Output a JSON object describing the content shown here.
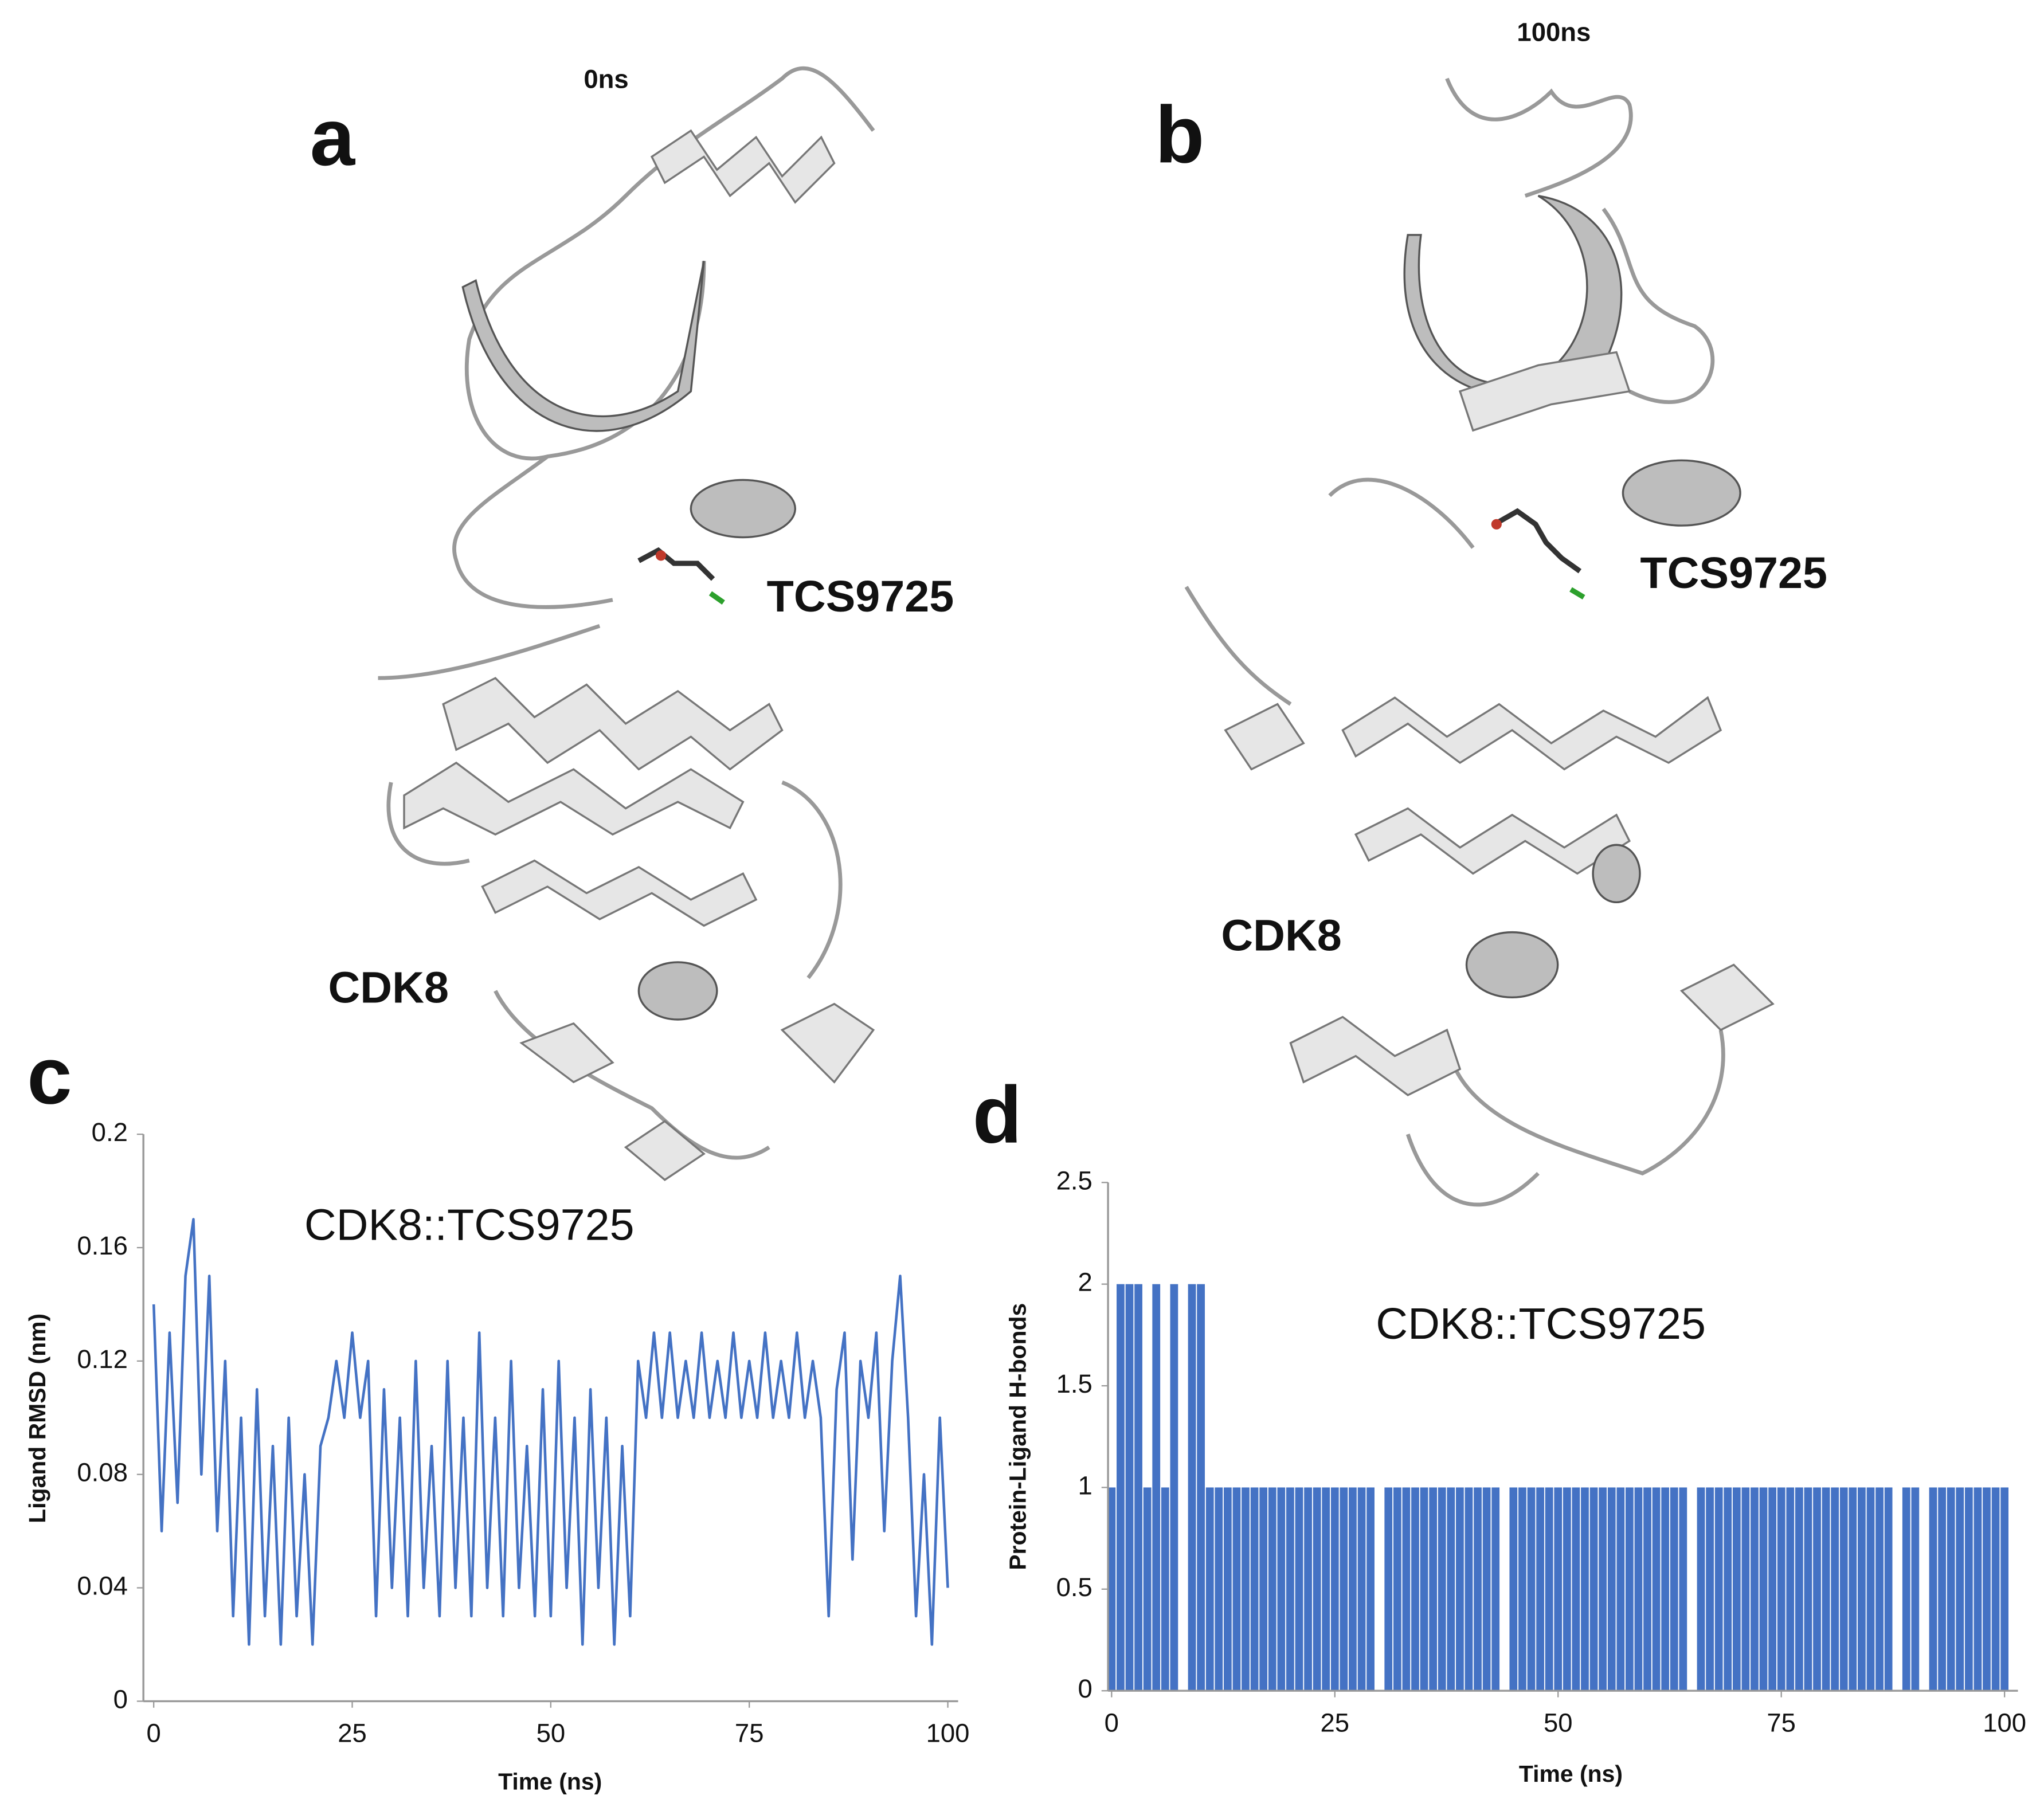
{
  "panels": [
    {
      "label": "a",
      "time": "0ns",
      "ligand": "TCS9725",
      "protein": "CDK8"
    },
    {
      "label": "b",
      "time": "100ns",
      "ligand": "TCS9725",
      "protein": "CDK8"
    }
  ],
  "chart_data": [
    {
      "type": "line",
      "panel_label": "c",
      "title": "CDK8::TCS9725",
      "x_label": "Time (ns)",
      "y_label": "Ligand RMSD (nm)",
      "color": "#4472c4",
      "xlim": [
        -1.3,
        101.3
      ],
      "xticks": [
        0,
        25,
        50,
        75,
        100
      ],
      "ylim": [
        0,
        0.2
      ],
      "yticks": [
        0,
        0.04,
        0.08,
        0.12,
        0.16,
        0.2
      ],
      "x": [
        0,
        1,
        2,
        3,
        4,
        5,
        6,
        7,
        8,
        9,
        10,
        11,
        12,
        13,
        14,
        15,
        16,
        17,
        18,
        19,
        20,
        21,
        22,
        23,
        24,
        25,
        26,
        27,
        28,
        29,
        30,
        31,
        32,
        33,
        34,
        35,
        36,
        37,
        38,
        39,
        40,
        41,
        42,
        43,
        44,
        45,
        46,
        47,
        48,
        49,
        50,
        51,
        52,
        53,
        54,
        55,
        56,
        57,
        58,
        59,
        60,
        61,
        62,
        63,
        64,
        65,
        66,
        67,
        68,
        69,
        70,
        71,
        72,
        73,
        74,
        75,
        76,
        77,
        78,
        79,
        80,
        81,
        82,
        83,
        84,
        85,
        86,
        87,
        88,
        89,
        90,
        91,
        92,
        93,
        94,
        95,
        96,
        97,
        98,
        99,
        100
      ],
      "values": [
        0.14,
        0.06,
        0.13,
        0.07,
        0.15,
        0.17,
        0.08,
        0.15,
        0.06,
        0.12,
        0.03,
        0.1,
        0.02,
        0.11,
        0.03,
        0.09,
        0.02,
        0.1,
        0.03,
        0.08,
        0.02,
        0.09,
        0.1,
        0.12,
        0.1,
        0.13,
        0.1,
        0.12,
        0.03,
        0.11,
        0.04,
        0.1,
        0.03,
        0.12,
        0.04,
        0.09,
        0.03,
        0.12,
        0.04,
        0.1,
        0.03,
        0.13,
        0.04,
        0.1,
        0.03,
        0.12,
        0.04,
        0.09,
        0.03,
        0.11,
        0.03,
        0.12,
        0.04,
        0.1,
        0.02,
        0.11,
        0.04,
        0.1,
        0.02,
        0.09,
        0.03,
        0.12,
        0.1,
        0.13,
        0.1,
        0.13,
        0.1,
        0.12,
        0.1,
        0.13,
        0.1,
        0.12,
        0.1,
        0.13,
        0.1,
        0.12,
        0.1,
        0.13,
        0.1,
        0.12,
        0.1,
        0.13,
        0.1,
        0.12,
        0.1,
        0.03,
        0.11,
        0.13,
        0.05,
        0.12,
        0.1,
        0.13,
        0.06,
        0.12,
        0.15,
        0.1,
        0.03,
        0.08,
        0.02,
        0.1,
        0.04
      ]
    },
    {
      "type": "bar",
      "panel_label": "d",
      "title": "CDK8::TCS9725",
      "x_label": "Time (ns)",
      "y_label": "Protein-Ligand H-bonds",
      "color": "#4472c4",
      "xlim": [
        -0.4,
        101.5
      ],
      "xticks": [
        0,
        25,
        50,
        75,
        100
      ],
      "ylim": [
        0,
        2.5
      ],
      "yticks": [
        0,
        0.5,
        1,
        1.5,
        2,
        2.5
      ],
      "x": [
        0,
        1,
        2,
        3,
        4,
        5,
        6,
        7,
        8,
        9,
        10,
        11,
        12,
        13,
        14,
        15,
        16,
        17,
        18,
        19,
        20,
        21,
        22,
        23,
        24,
        25,
        26,
        27,
        28,
        29,
        30,
        31,
        32,
        33,
        34,
        35,
        36,
        37,
        38,
        39,
        40,
        41,
        42,
        43,
        44,
        45,
        46,
        47,
        48,
        49,
        50,
        51,
        52,
        53,
        54,
        55,
        56,
        57,
        58,
        59,
        60,
        61,
        62,
        63,
        64,
        65,
        66,
        67,
        68,
        69,
        70,
        71,
        72,
        73,
        74,
        75,
        76,
        77,
        78,
        79,
        80,
        81,
        82,
        83,
        84,
        85,
        86,
        87,
        88,
        89,
        90,
        91,
        92,
        93,
        94,
        95,
        96,
        97,
        98,
        99,
        100
      ],
      "values": [
        1,
        2,
        2,
        2,
        1,
        2,
        1,
        2,
        0,
        2,
        2,
        1,
        1,
        1,
        1,
        1,
        1,
        1,
        1,
        1,
        1,
        1,
        1,
        1,
        1,
        1,
        1,
        1,
        1,
        1,
        0,
        1,
        1,
        1,
        1,
        1,
        1,
        1,
        1,
        1,
        1,
        1,
        1,
        1,
        0,
        1,
        1,
        1,
        1,
        1,
        1,
        1,
        1,
        1,
        1,
        1,
        1,
        1,
        1,
        1,
        1,
        1,
        1,
        1,
        1,
        0,
        1,
        1,
        1,
        1,
        1,
        1,
        1,
        1,
        1,
        1,
        1,
        1,
        1,
        1,
        1,
        1,
        1,
        1,
        1,
        1,
        1,
        1,
        0,
        1,
        1,
        0,
        1,
        1,
        1,
        1,
        1,
        1,
        1,
        1,
        1
      ]
    }
  ]
}
